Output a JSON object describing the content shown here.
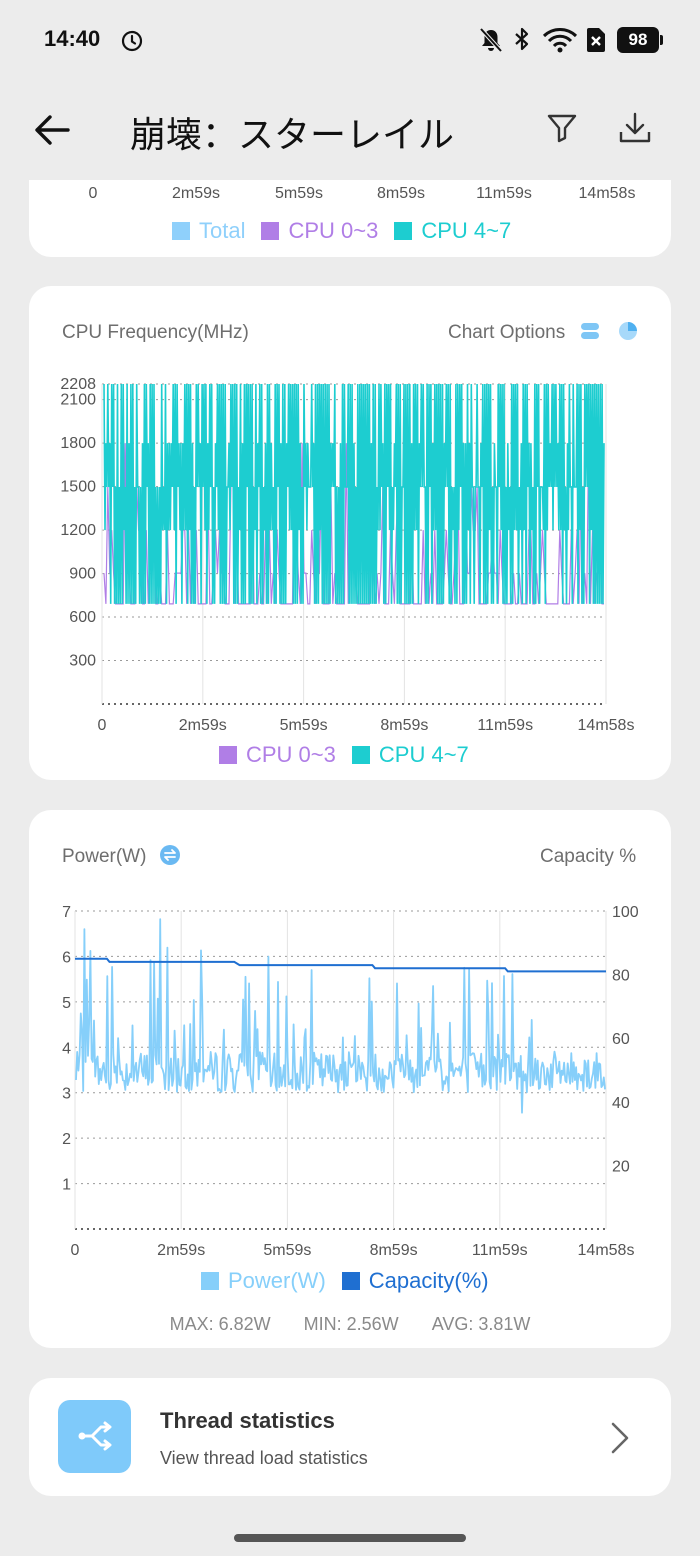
{
  "status_bar": {
    "time": "14:40",
    "battery": "98",
    "icons": [
      "alarm-clock-icon",
      "bell-off-icon",
      "bluetooth-icon",
      "wifi-icon",
      "sim-off-icon",
      "battery-icon"
    ]
  },
  "header": {
    "title": "崩壊：スターレイル",
    "back_icon": "arrow-left-icon",
    "filter_icon": "filter-icon",
    "download_icon": "download-icon"
  },
  "top_card": {
    "x_ticks": [
      "0",
      "2m59s",
      "5m59s",
      "8m59s",
      "11m59s",
      "14m58s"
    ],
    "legend": [
      {
        "label": "Total",
        "color": "#8fd0fb"
      },
      {
        "label": "CPU 0~3",
        "color": "#b07ee6"
      },
      {
        "label": "CPU 4~7",
        "color": "#1dcdd0"
      }
    ]
  },
  "cpu_card": {
    "title": "CPU Frequency(MHz)",
    "options_label": "Chart Options",
    "options_icons": [
      "layers-icon",
      "pie-chart-icon"
    ]
  },
  "power_card": {
    "title": "Power(W)",
    "right_label": "Capacity %",
    "swap_icon": "swap-icon",
    "stats": {
      "max": "MAX: 6.82W",
      "min": "MIN: 2.56W",
      "avg": "AVG: 3.81W"
    }
  },
  "thread_card": {
    "title": "Thread statistics",
    "subtitle": "View thread load statistics",
    "icon": "branch-icon",
    "chevron_icon": "chevron-right-icon"
  },
  "chart_data": [
    {
      "type": "line",
      "title": "CPU Frequency(MHz)",
      "x_ticks": [
        "0",
        "2m59s",
        "5m59s",
        "8m59s",
        "11m59s",
        "14m58s"
      ],
      "y_ticks": [
        300,
        600,
        900,
        1200,
        1500,
        1800,
        2100,
        2208
      ],
      "ylim": [
        0,
        2208
      ],
      "y_min_observed": 691,
      "levels": [
        691,
        903,
        1200,
        1497,
        1800,
        2208
      ],
      "grid": true,
      "legend": "bottom",
      "series": [
        {
          "name": "CPU 0~3",
          "color": "#b07ee6",
          "pattern": "oscillating between 691 and 1800, mostly at the lower end"
        },
        {
          "name": "CPU 4~7",
          "color": "#1dcdd0",
          "pattern": "rapid oscillation between 691 and 2208"
        }
      ]
    },
    {
      "type": "line",
      "title": "Power(W)",
      "x_ticks": [
        "0",
        "2m59s",
        "5m59s",
        "8m59s",
        "11m59s",
        "14m58s"
      ],
      "y_ticks": [
        1,
        2,
        3,
        4,
        5,
        6,
        7
      ],
      "ylim": [
        0,
        7
      ],
      "y2_ticks": [
        20,
        40,
        60,
        80,
        100
      ],
      "y2lim": [
        0,
        100
      ],
      "grid": true,
      "legend": "bottom",
      "series": [
        {
          "name": "Power(W)",
          "color": "#86cffa",
          "axis": "left",
          "max": 6.82,
          "min": 2.56,
          "avg": 3.81
        },
        {
          "name": "Capacity(%)",
          "color": "#1f6fd1",
          "axis": "right",
          "points": [
            [
              0,
              85
            ],
            [
              0.06,
              85
            ],
            [
              0.065,
              84
            ],
            [
              0.3,
              84
            ],
            [
              0.31,
              83
            ],
            [
              0.56,
              83
            ],
            [
              0.565,
              82
            ],
            [
              0.81,
              82
            ],
            [
              0.815,
              81
            ],
            [
              1,
              81
            ]
          ]
        }
      ]
    }
  ]
}
